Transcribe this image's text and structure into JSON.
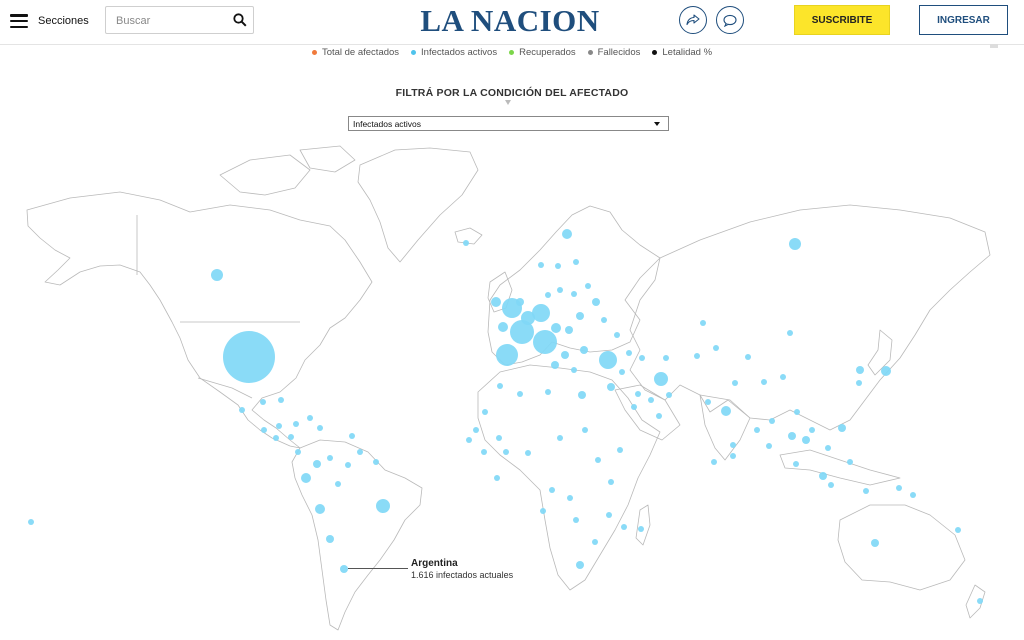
{
  "header": {
    "menu_label": "Secciones",
    "search_placeholder": "Buscar",
    "logo": "LA NACION",
    "subscribe_label": "SUSCRIBITE",
    "login_label": "INGRESAR"
  },
  "legend": [
    {
      "label": "Total de afectados",
      "color": "#f07a3c"
    },
    {
      "label": "Infectados activos",
      "color": "#4fc3ec"
    },
    {
      "label": "Recuperados",
      "color": "#7cd64a"
    },
    {
      "label": "Fallecidos",
      "color": "#888888"
    },
    {
      "label": "Letalidad %",
      "color": "#111111"
    }
  ],
  "filter": {
    "title": "FILTRÁ POR LA CONDICIÓN DEL AFECTADO",
    "selected": "Infectados activos"
  },
  "annotation": {
    "country": "Argentina",
    "detail": "1.616 infectados actuales"
  },
  "colors": {
    "brand": "#1f4e7d",
    "bubble": "#80d8f6",
    "subscribe": "#fce52a"
  }
}
